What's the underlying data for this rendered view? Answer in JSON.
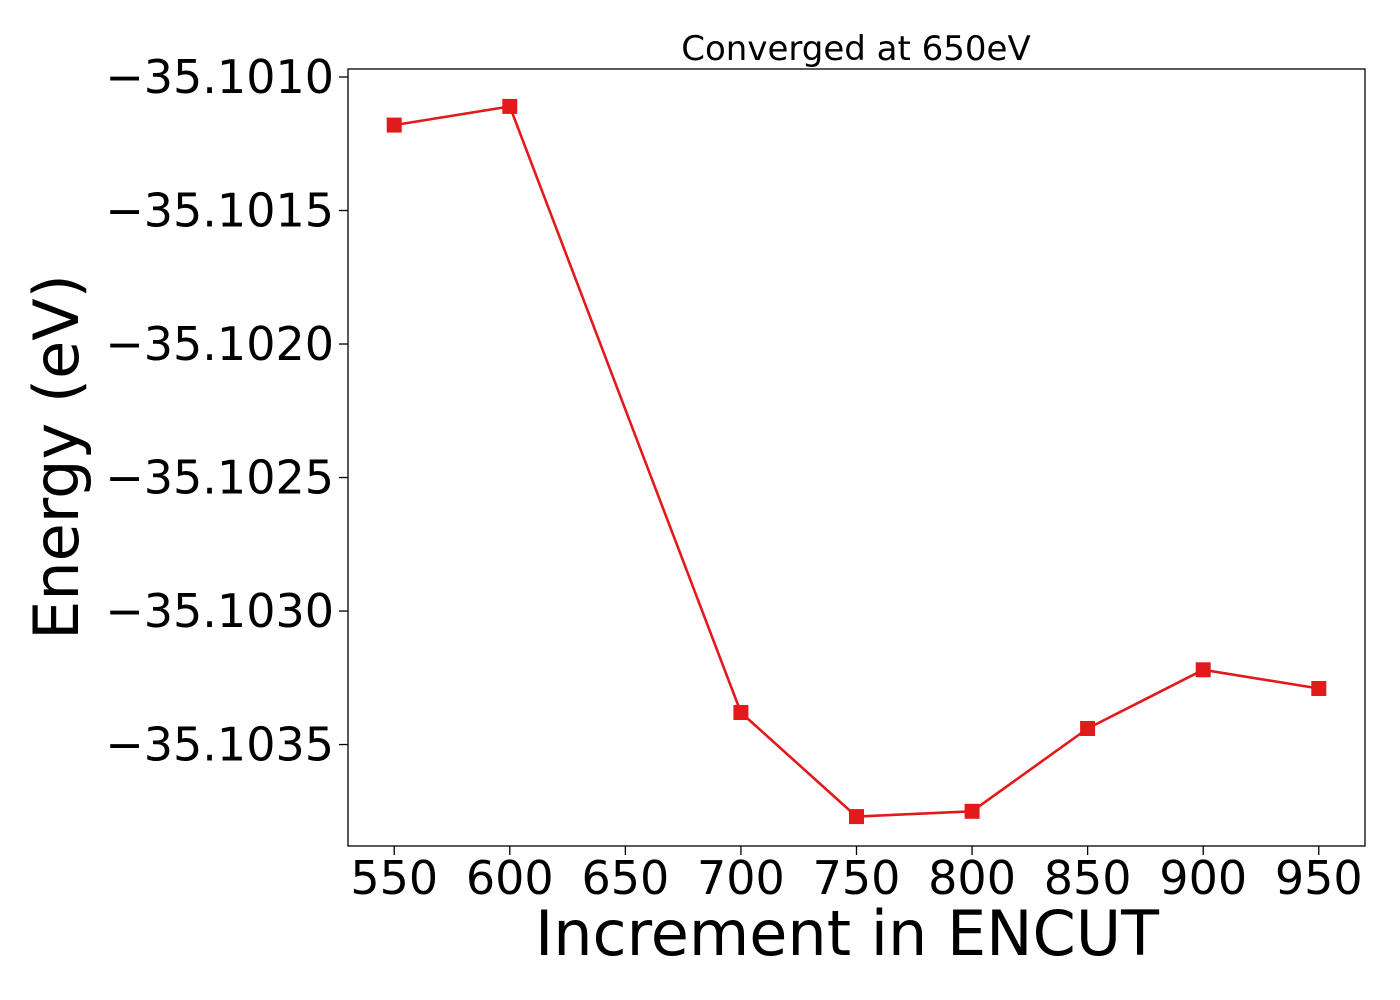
{
  "chart_data": {
    "type": "line",
    "title": "Converged at 650eV",
    "xlabel": "Increment in ENCUT",
    "ylabel": "Energy (eV)",
    "x": [
      550,
      600,
      700,
      750,
      800,
      850,
      900,
      950
    ],
    "series": [
      {
        "values": [
          -35.10118,
          -35.10111,
          -35.10338,
          -35.10377,
          -35.10375,
          -35.10344,
          -35.10322,
          -35.10329
        ],
        "color": "#e31a1c",
        "marker": "square"
      }
    ],
    "x_ticks": [
      550,
      600,
      650,
      700,
      750,
      800,
      850,
      900,
      950
    ],
    "x_tick_labels": [
      "550",
      "600",
      "650",
      "700",
      "750",
      "800",
      "850",
      "900",
      "950"
    ],
    "y_ticks": [
      -35.101,
      -35.1015,
      -35.102,
      -35.1025,
      -35.103,
      -35.1035
    ],
    "y_tick_labels": [
      "−35.1010",
      "−35.1015",
      "−35.1020",
      "−35.1025",
      "−35.1030",
      "−35.1035"
    ],
    "xlim": [
      530,
      970
    ],
    "ylim": [
      -35.10388,
      -35.10097
    ],
    "grid": false,
    "legend": false
  }
}
